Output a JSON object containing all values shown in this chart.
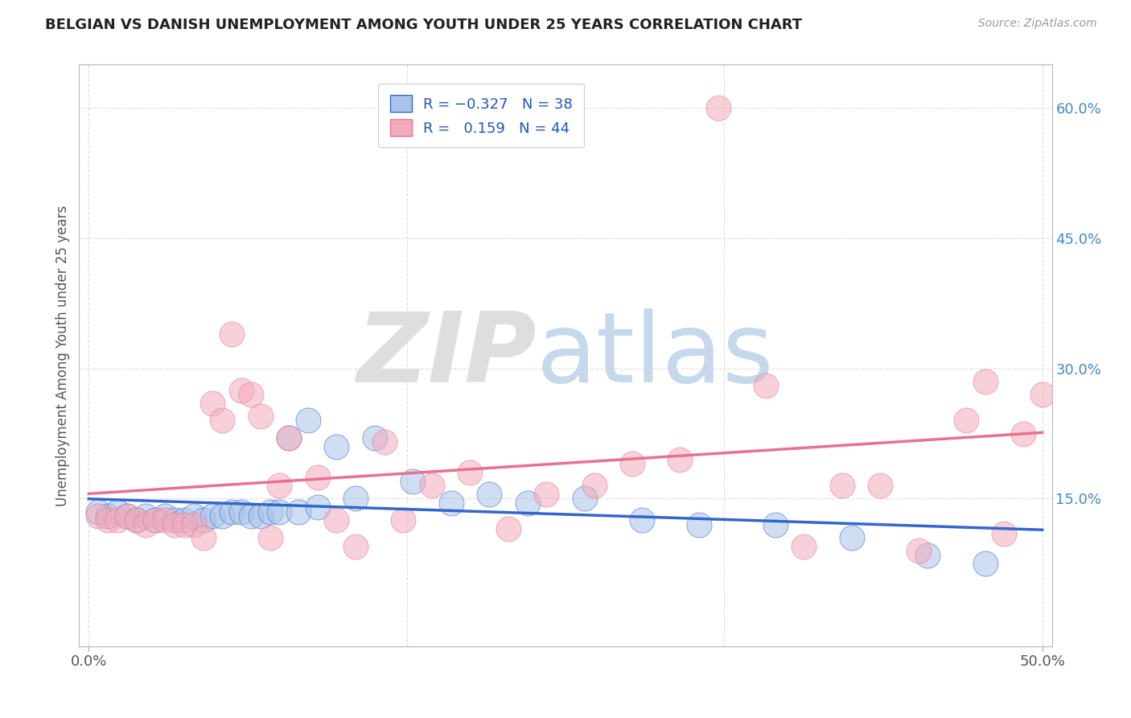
{
  "title": "BELGIAN VS DANISH UNEMPLOYMENT AMONG YOUTH UNDER 25 YEARS CORRELATION CHART",
  "source": "Source: ZipAtlas.com",
  "ylabel": "Unemployment Among Youth under 25 years",
  "xlabel": "",
  "xlim": [
    -0.005,
    0.505
  ],
  "ylim": [
    -0.02,
    0.65
  ],
  "xticks": [
    0.0,
    0.5
  ],
  "xtick_labels": [
    "0.0%",
    "50.0%"
  ],
  "yticks_right": [
    0.15,
    0.3,
    0.45,
    0.6
  ],
  "ytick_labels_right": [
    "15.0%",
    "30.0%",
    "45.0%",
    "60.0%"
  ],
  "color_belgian": "#A8C4E8",
  "color_dane": "#F4AABB",
  "color_trendline_belgian": "#3366CC",
  "color_trendline_dane": "#E87090",
  "background_color": "#FFFFFF",
  "grid_color": "#DDDDDD",
  "title_color": "#222222",
  "belgian_x": [
    0.005,
    0.01,
    0.015,
    0.02,
    0.025,
    0.03,
    0.035,
    0.04,
    0.045,
    0.05,
    0.055,
    0.06,
    0.065,
    0.07,
    0.075,
    0.08,
    0.085,
    0.09,
    0.095,
    0.1,
    0.105,
    0.11,
    0.115,
    0.12,
    0.13,
    0.14,
    0.15,
    0.17,
    0.19,
    0.21,
    0.23,
    0.26,
    0.29,
    0.32,
    0.36,
    0.4,
    0.44,
    0.47
  ],
  "belgian_y": [
    0.135,
    0.13,
    0.135,
    0.13,
    0.125,
    0.13,
    0.125,
    0.13,
    0.125,
    0.125,
    0.13,
    0.125,
    0.13,
    0.13,
    0.135,
    0.135,
    0.13,
    0.13,
    0.135,
    0.135,
    0.22,
    0.135,
    0.24,
    0.14,
    0.21,
    0.15,
    0.22,
    0.17,
    0.145,
    0.155,
    0.145,
    0.15,
    0.125,
    0.12,
    0.12,
    0.105,
    0.085,
    0.075
  ],
  "dane_x": [
    0.005,
    0.01,
    0.015,
    0.02,
    0.025,
    0.03,
    0.035,
    0.04,
    0.045,
    0.05,
    0.055,
    0.06,
    0.065,
    0.07,
    0.075,
    0.08,
    0.085,
    0.09,
    0.095,
    0.1,
    0.105,
    0.12,
    0.13,
    0.14,
    0.155,
    0.165,
    0.18,
    0.2,
    0.22,
    0.24,
    0.265,
    0.285,
    0.31,
    0.33,
    0.355,
    0.375,
    0.395,
    0.415,
    0.435,
    0.46,
    0.47,
    0.48,
    0.49,
    0.5
  ],
  "dane_y": [
    0.13,
    0.125,
    0.125,
    0.13,
    0.125,
    0.12,
    0.125,
    0.125,
    0.12,
    0.12,
    0.12,
    0.105,
    0.26,
    0.24,
    0.34,
    0.275,
    0.27,
    0.245,
    0.105,
    0.165,
    0.22,
    0.175,
    0.125,
    0.095,
    0.215,
    0.125,
    0.165,
    0.18,
    0.115,
    0.155,
    0.165,
    0.19,
    0.195,
    0.6,
    0.28,
    0.095,
    0.165,
    0.165,
    0.09,
    0.24,
    0.285,
    0.11,
    0.225,
    0.27
  ]
}
